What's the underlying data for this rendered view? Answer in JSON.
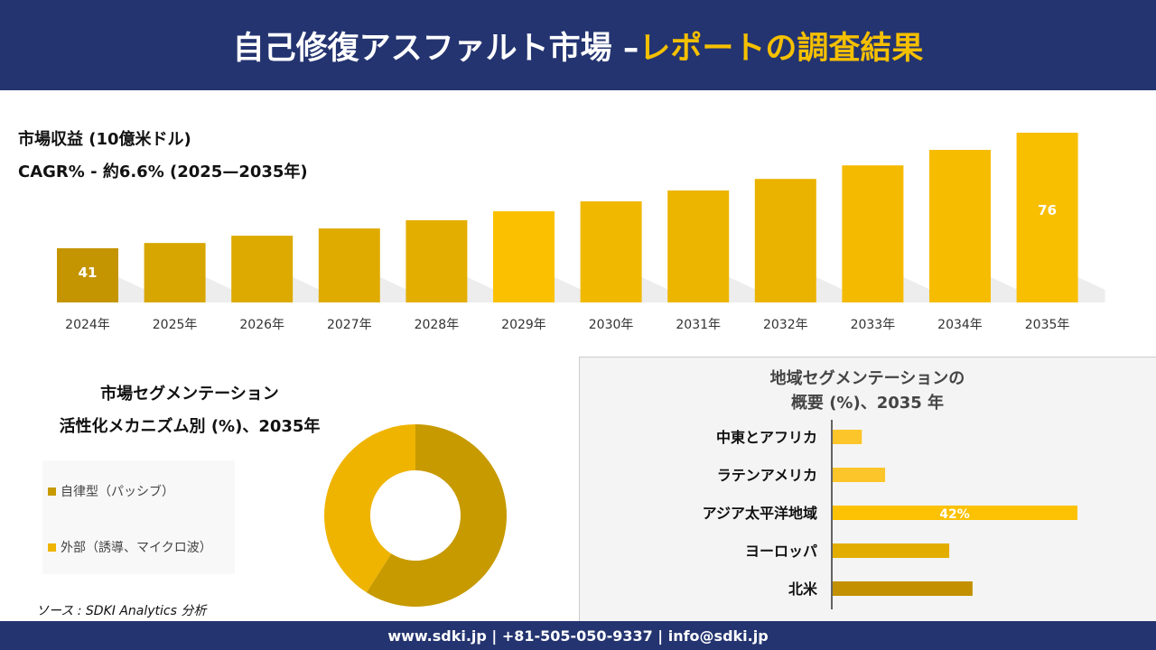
{
  "header": {
    "title_main": "自己修復アスファルト市場 –",
    "title_highlight": "レポートの調査結果"
  },
  "revenue_label": "市場収益 (10億米ドル)",
  "cagr_label": "CAGR% - 約6.6% (2025—2035年)",
  "segment_title_1": "市場セグメンテーション",
  "segment_title_2": "活性化メカニズム別 (%)、2035年",
  "region_title_1": "地域セグメンテーションの",
  "region_title_2": "概要 (%)、2035 年",
  "source": "ソース : SDKI Analytics 分析",
  "footer": "www.sdki.jp | +81-505-050-9337 | info@sdki.jp",
  "colors": {
    "navy": "#243470",
    "accent": "#f5c000",
    "dark_gold": "#c49500"
  },
  "chart_data": [
    {
      "type": "bar",
      "title": "市場収益 (10億米ドル)",
      "categories": [
        "2024年",
        "2025年",
        "2026年",
        "2027年",
        "2028年",
        "2029年",
        "2030年",
        "2031年",
        "2032年",
        "2033年",
        "2034年",
        "2035年"
      ],
      "values": [
        41,
        42.6,
        44.8,
        47,
        49.5,
        52.2,
        55.2,
        58.5,
        62,
        66.1,
        70.8,
        76
      ],
      "data_labels": {
        "0": "41",
        "11": "76"
      },
      "grid": false
    },
    {
      "type": "pie",
      "donut": true,
      "title": "活性化メカニズム別 (%)、2035年",
      "slices": [
        {
          "name": "自律型（パッシブ）",
          "value": 59,
          "color": "#c79a00"
        },
        {
          "name": "外部（誘導、マイクロ波）",
          "value": 41,
          "color": "#efb400"
        }
      ],
      "legend": "left"
    },
    {
      "type": "bar",
      "orientation": "horizontal",
      "title": "地域セグメンテーションの概要 (%)、2035 年",
      "categories": [
        "中東とアフリカ",
        "ラテンアメリカ",
        "アジア太平洋地域",
        "ヨーロッパ",
        "北米"
      ],
      "values": [
        5,
        9,
        42,
        20,
        24
      ],
      "colors": [
        "#fcc52a",
        "#fcc52a",
        "#fbc102",
        "#e3ad00",
        "#c29000"
      ],
      "data_labels": {
        "2": "42%"
      }
    }
  ]
}
